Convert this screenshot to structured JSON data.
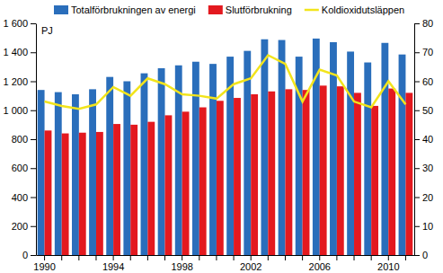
{
  "chart_data": {
    "type": "bar",
    "y_label": "PJ",
    "categories": [
      "1990",
      null,
      null,
      null,
      "1994",
      null,
      null,
      null,
      "1998",
      null,
      null,
      null,
      "2002",
      null,
      null,
      null,
      "2006",
      null,
      null,
      null,
      "2010",
      null
    ],
    "series": [
      {
        "name": "Totalförbrukningen av energi",
        "type": "bar",
        "color": "#2a6ebb",
        "values": [
          1140,
          1125,
          1110,
          1145,
          1230,
          1200,
          1255,
          1290,
          1310,
          1335,
          1320,
          1370,
          1410,
          1490,
          1485,
          1370,
          1495,
          1470,
          1405,
          1330,
          1465,
          1385
        ]
      },
      {
        "name": "Slutförbrukning",
        "type": "bar",
        "color": "#e3191f",
        "values": [
          860,
          840,
          845,
          850,
          905,
          900,
          920,
          965,
          990,
          1020,
          1065,
          1085,
          1110,
          1130,
          1145,
          1140,
          1170,
          1165,
          1120,
          1030,
          1150,
          1120
        ]
      },
      {
        "name": "Koldioxidutsläppen",
        "type": "line",
        "axis": "y2",
        "color": "#f2e41c",
        "values": [
          53,
          51.5,
          50.5,
          52,
          58,
          55,
          61,
          59,
          55.5,
          55,
          54,
          59,
          61,
          69,
          66,
          53,
          64,
          62,
          53,
          51,
          60,
          52
        ]
      }
    ],
    "ylim": [
      0,
      1600
    ],
    "yticks": [
      0,
      200,
      400,
      600,
      800,
      {
        "value": 1000,
        "label": "1 000"
      },
      {
        "value": 1200,
        "label": "1 200"
      },
      {
        "value": 1400,
        "label": "1 400"
      },
      {
        "value": 1600,
        "label": "1 600"
      }
    ],
    "y2lim": [
      0,
      80
    ],
    "y2ticks": [
      0,
      10,
      20,
      30,
      40,
      50,
      60,
      70,
      80
    ],
    "grid": false,
    "legend": "top"
  }
}
